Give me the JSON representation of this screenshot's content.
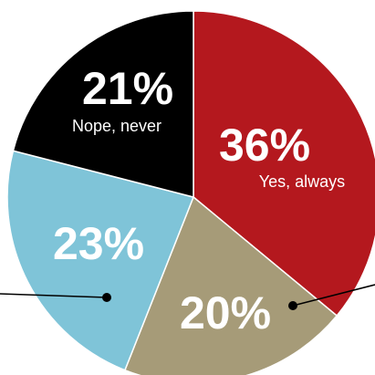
{
  "chart_data": {
    "type": "pie",
    "slices": [
      {
        "label": "Yes, always",
        "value": 36,
        "value_label": "36%",
        "color": "#b4181e"
      },
      {
        "label": "",
        "value": 20,
        "value_label": "20%",
        "color": "#a69b78"
      },
      {
        "label": "",
        "value": 23,
        "value_label": "23%",
        "color": "#7fc4d8"
      },
      {
        "label": "Nope, never",
        "value": 21,
        "value_label": "21%",
        "color": "#000000"
      }
    ],
    "start": "12 o'clock",
    "direction": "clockwise",
    "colors": {
      "stroke": "#ffffff",
      "leader_line": "#000000"
    }
  }
}
